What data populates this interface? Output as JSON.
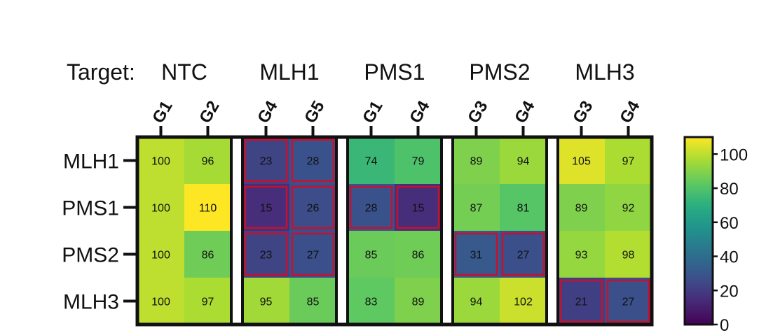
{
  "chart_data": {
    "type": "heatmap",
    "target_label": "Target:",
    "groups": [
      {
        "target": "NTC",
        "guides": [
          "G1",
          "G2"
        ]
      },
      {
        "target": "MLH1",
        "guides": [
          "G4",
          "G5"
        ]
      },
      {
        "target": "PMS1",
        "guides": [
          "G1",
          "G4"
        ]
      },
      {
        "target": "PMS2",
        "guides": [
          "G3",
          "G4"
        ]
      },
      {
        "target": "MLH3",
        "guides": [
          "G3",
          "G4"
        ]
      }
    ],
    "rows": [
      "MLH1",
      "PMS1",
      "PMS2",
      "MLH3"
    ],
    "values": [
      [
        100,
        96,
        23,
        28,
        74,
        79,
        89,
        94,
        105,
        97
      ],
      [
        100,
        110,
        15,
        26,
        28,
        15,
        87,
        81,
        89,
        92
      ],
      [
        100,
        86,
        23,
        27,
        85,
        86,
        31,
        27,
        93,
        98
      ],
      [
        100,
        97,
        95,
        85,
        83,
        89,
        94,
        102,
        21,
        27
      ]
    ],
    "highlighted_cells": [
      [
        0,
        2
      ],
      [
        0,
        3
      ],
      [
        1,
        2
      ],
      [
        1,
        3
      ],
      [
        1,
        4
      ],
      [
        1,
        5
      ],
      [
        2,
        2
      ],
      [
        2,
        3
      ],
      [
        2,
        6
      ],
      [
        2,
        7
      ],
      [
        3,
        8
      ],
      [
        3,
        9
      ]
    ],
    "colorbar": {
      "min": 0,
      "max": 110,
      "ticks": [
        0,
        20,
        40,
        60,
        80,
        100
      ],
      "colormap": "viridis"
    },
    "highlight_color": "#c8102e"
  }
}
